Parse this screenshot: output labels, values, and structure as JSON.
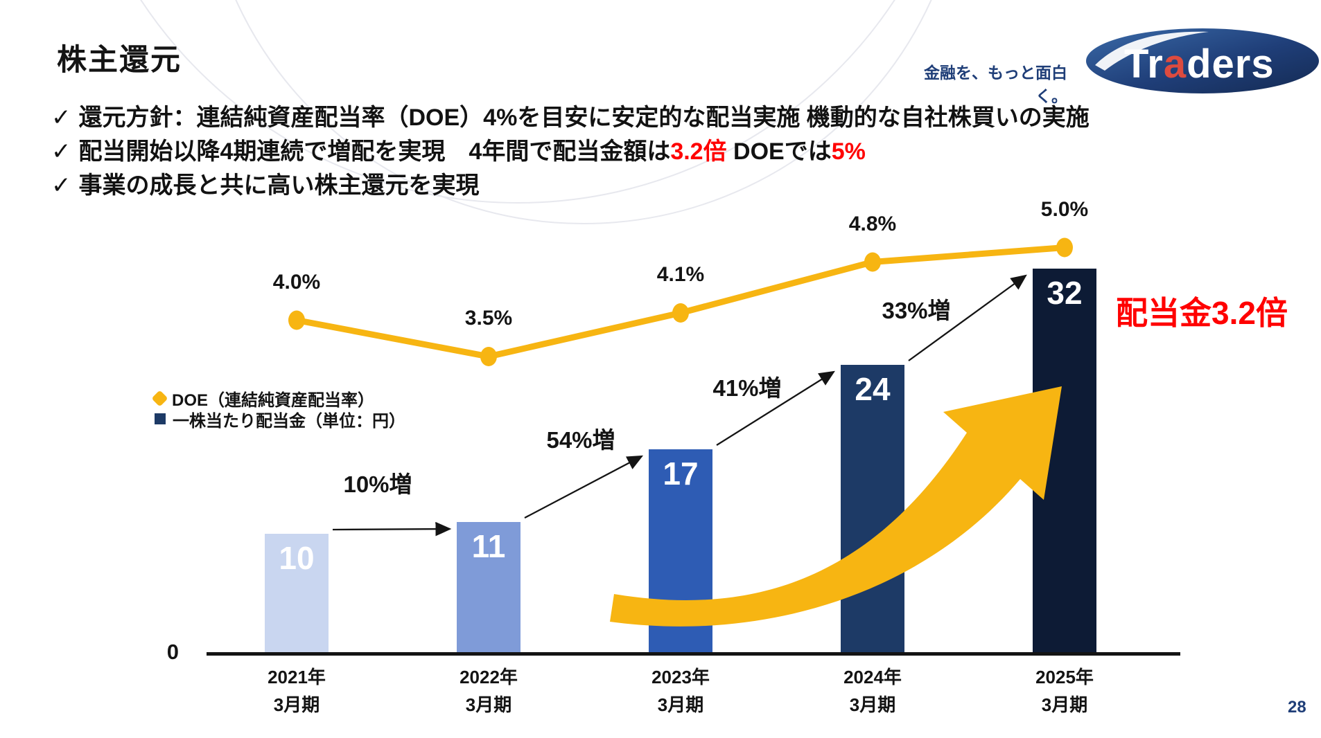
{
  "slide": {
    "title": "株主還元",
    "page_number": "28"
  },
  "logo": {
    "tagline": "金融を、もっと面白く。",
    "brand_t": "Tr",
    "brand_a": "a",
    "brand_rest": "ders",
    "ellipse_color": "#1f3e78",
    "accent_a_color": "#dd4b3f"
  },
  "bullets": {
    "check": "✓",
    "b1": "還元方針：連結純資産配当率（DOE）4%を目安に安定的な配当実施 機動的な自社株買いの実施",
    "b2_pre": "配当開始以降4期連続で増配を実現　4年間で配当金額は",
    "b2_red1": "3.2倍",
    "b2_mid": " DOEでは",
    "b2_red2": "5%",
    "b3": "事業の成長と共に高い株主還元を実現"
  },
  "chart_data": {
    "type": "bar+line",
    "categories": [
      {
        "line1": "2021年",
        "line2": "3月期"
      },
      {
        "line1": "2022年",
        "line2": "3月期"
      },
      {
        "line1": "2023年",
        "line2": "3月期"
      },
      {
        "line1": "2024年",
        "line2": "3月期"
      },
      {
        "line1": "2025年",
        "line2": "3月期"
      }
    ],
    "bar_series": {
      "name": "一株当たり配当金（単位：円）",
      "values": [
        10,
        11,
        17,
        24,
        32
      ],
      "colors": [
        "#c9d6f0",
        "#7f9bd8",
        "#2e5cb4",
        "#1d3a66",
        "#0d1b35"
      ]
    },
    "line_series": {
      "name": "DOE（連結純資産配当率）",
      "values": [
        4.0,
        3.5,
        4.1,
        4.8,
        5.0
      ],
      "labels": [
        "4.0%",
        "3.5%",
        "4.1%",
        "4.8%",
        "5.0%"
      ],
      "color": "#f7b512"
    },
    "growth_labels": [
      "10%増",
      "54%増",
      "41%増",
      "33%増"
    ],
    "annotation": "配当金3.2倍",
    "annotation_color": "#ff0000",
    "axis_zero_label": "0",
    "legend": {
      "line_label": "DOE（連結純資産配当率）",
      "bar_label": "一株当たり配当金（単位：円）"
    },
    "ylim_bar": [
      0,
      34
    ],
    "grid": false,
    "legend_position": "middle-left"
  }
}
